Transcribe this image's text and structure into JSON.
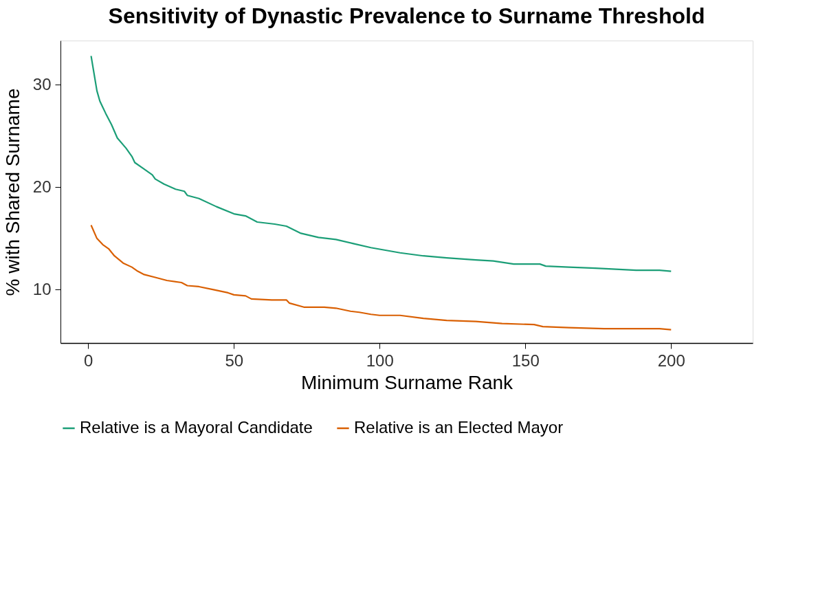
{
  "chart_data": {
    "type": "line",
    "title": "Sensitivity of Dynastic Prevalence to Surname Threshold",
    "xlabel": "Minimum Surname Rank",
    "ylabel": "% with Shared Surname",
    "xlim": [
      -9.5,
      228
    ],
    "xticks": [
      0,
      50,
      100,
      150,
      200
    ],
    "ylim": [
      4.8,
      34.3
    ],
    "yticks": [
      10,
      20,
      30
    ],
    "legend": "bottom",
    "line_style": "solid",
    "series": [
      {
        "name": "Relative is a Mayoral Candidate",
        "color": "#1b9e77",
        "x": [
          1,
          2,
          3,
          4,
          5,
          6,
          8,
          10,
          13,
          15,
          16,
          19,
          22,
          23,
          26,
          30,
          33,
          34,
          38,
          44,
          50,
          54,
          58,
          64,
          68,
          73,
          79,
          85,
          91,
          97,
          101,
          107,
          115,
          123,
          133,
          139,
          146,
          155,
          157,
          165,
          174,
          181,
          188,
          196,
          200
        ],
        "values": [
          32.8,
          31.1,
          29.4,
          28.4,
          27.8,
          27.2,
          26.1,
          24.8,
          23.8,
          23.0,
          22.4,
          21.8,
          21.2,
          20.8,
          20.3,
          19.8,
          19.6,
          19.2,
          18.9,
          18.1,
          17.4,
          17.2,
          16.6,
          16.4,
          16.2,
          15.5,
          15.1,
          14.9,
          14.5,
          14.1,
          13.9,
          13.6,
          13.3,
          13.1,
          12.9,
          12.8,
          12.5,
          12.5,
          12.3,
          12.2,
          12.1,
          12.0,
          11.9,
          11.9,
          11.8
        ]
      },
      {
        "name": "Relative is an Elected Mayor",
        "color": "#d95f02",
        "x": [
          1,
          3,
          5,
          7,
          9,
          12,
          15,
          17,
          19,
          23,
          27,
          32,
          34,
          38,
          43,
          48,
          50,
          54,
          56,
          63,
          68,
          69,
          74,
          81,
          85,
          90,
          93,
          97,
          100,
          107,
          115,
          123,
          133,
          142,
          153,
          156,
          165,
          177,
          188,
          196,
          200
        ],
        "values": [
          16.3,
          15.0,
          14.4,
          14.0,
          13.3,
          12.6,
          12.2,
          11.8,
          11.5,
          11.2,
          10.9,
          10.7,
          10.4,
          10.3,
          10.0,
          9.7,
          9.5,
          9.4,
          9.1,
          9.0,
          9.0,
          8.7,
          8.3,
          8.3,
          8.2,
          7.9,
          7.8,
          7.6,
          7.5,
          7.5,
          7.2,
          7.0,
          6.9,
          6.7,
          6.6,
          6.4,
          6.3,
          6.2,
          6.2,
          6.2,
          6.1
        ]
      }
    ]
  }
}
